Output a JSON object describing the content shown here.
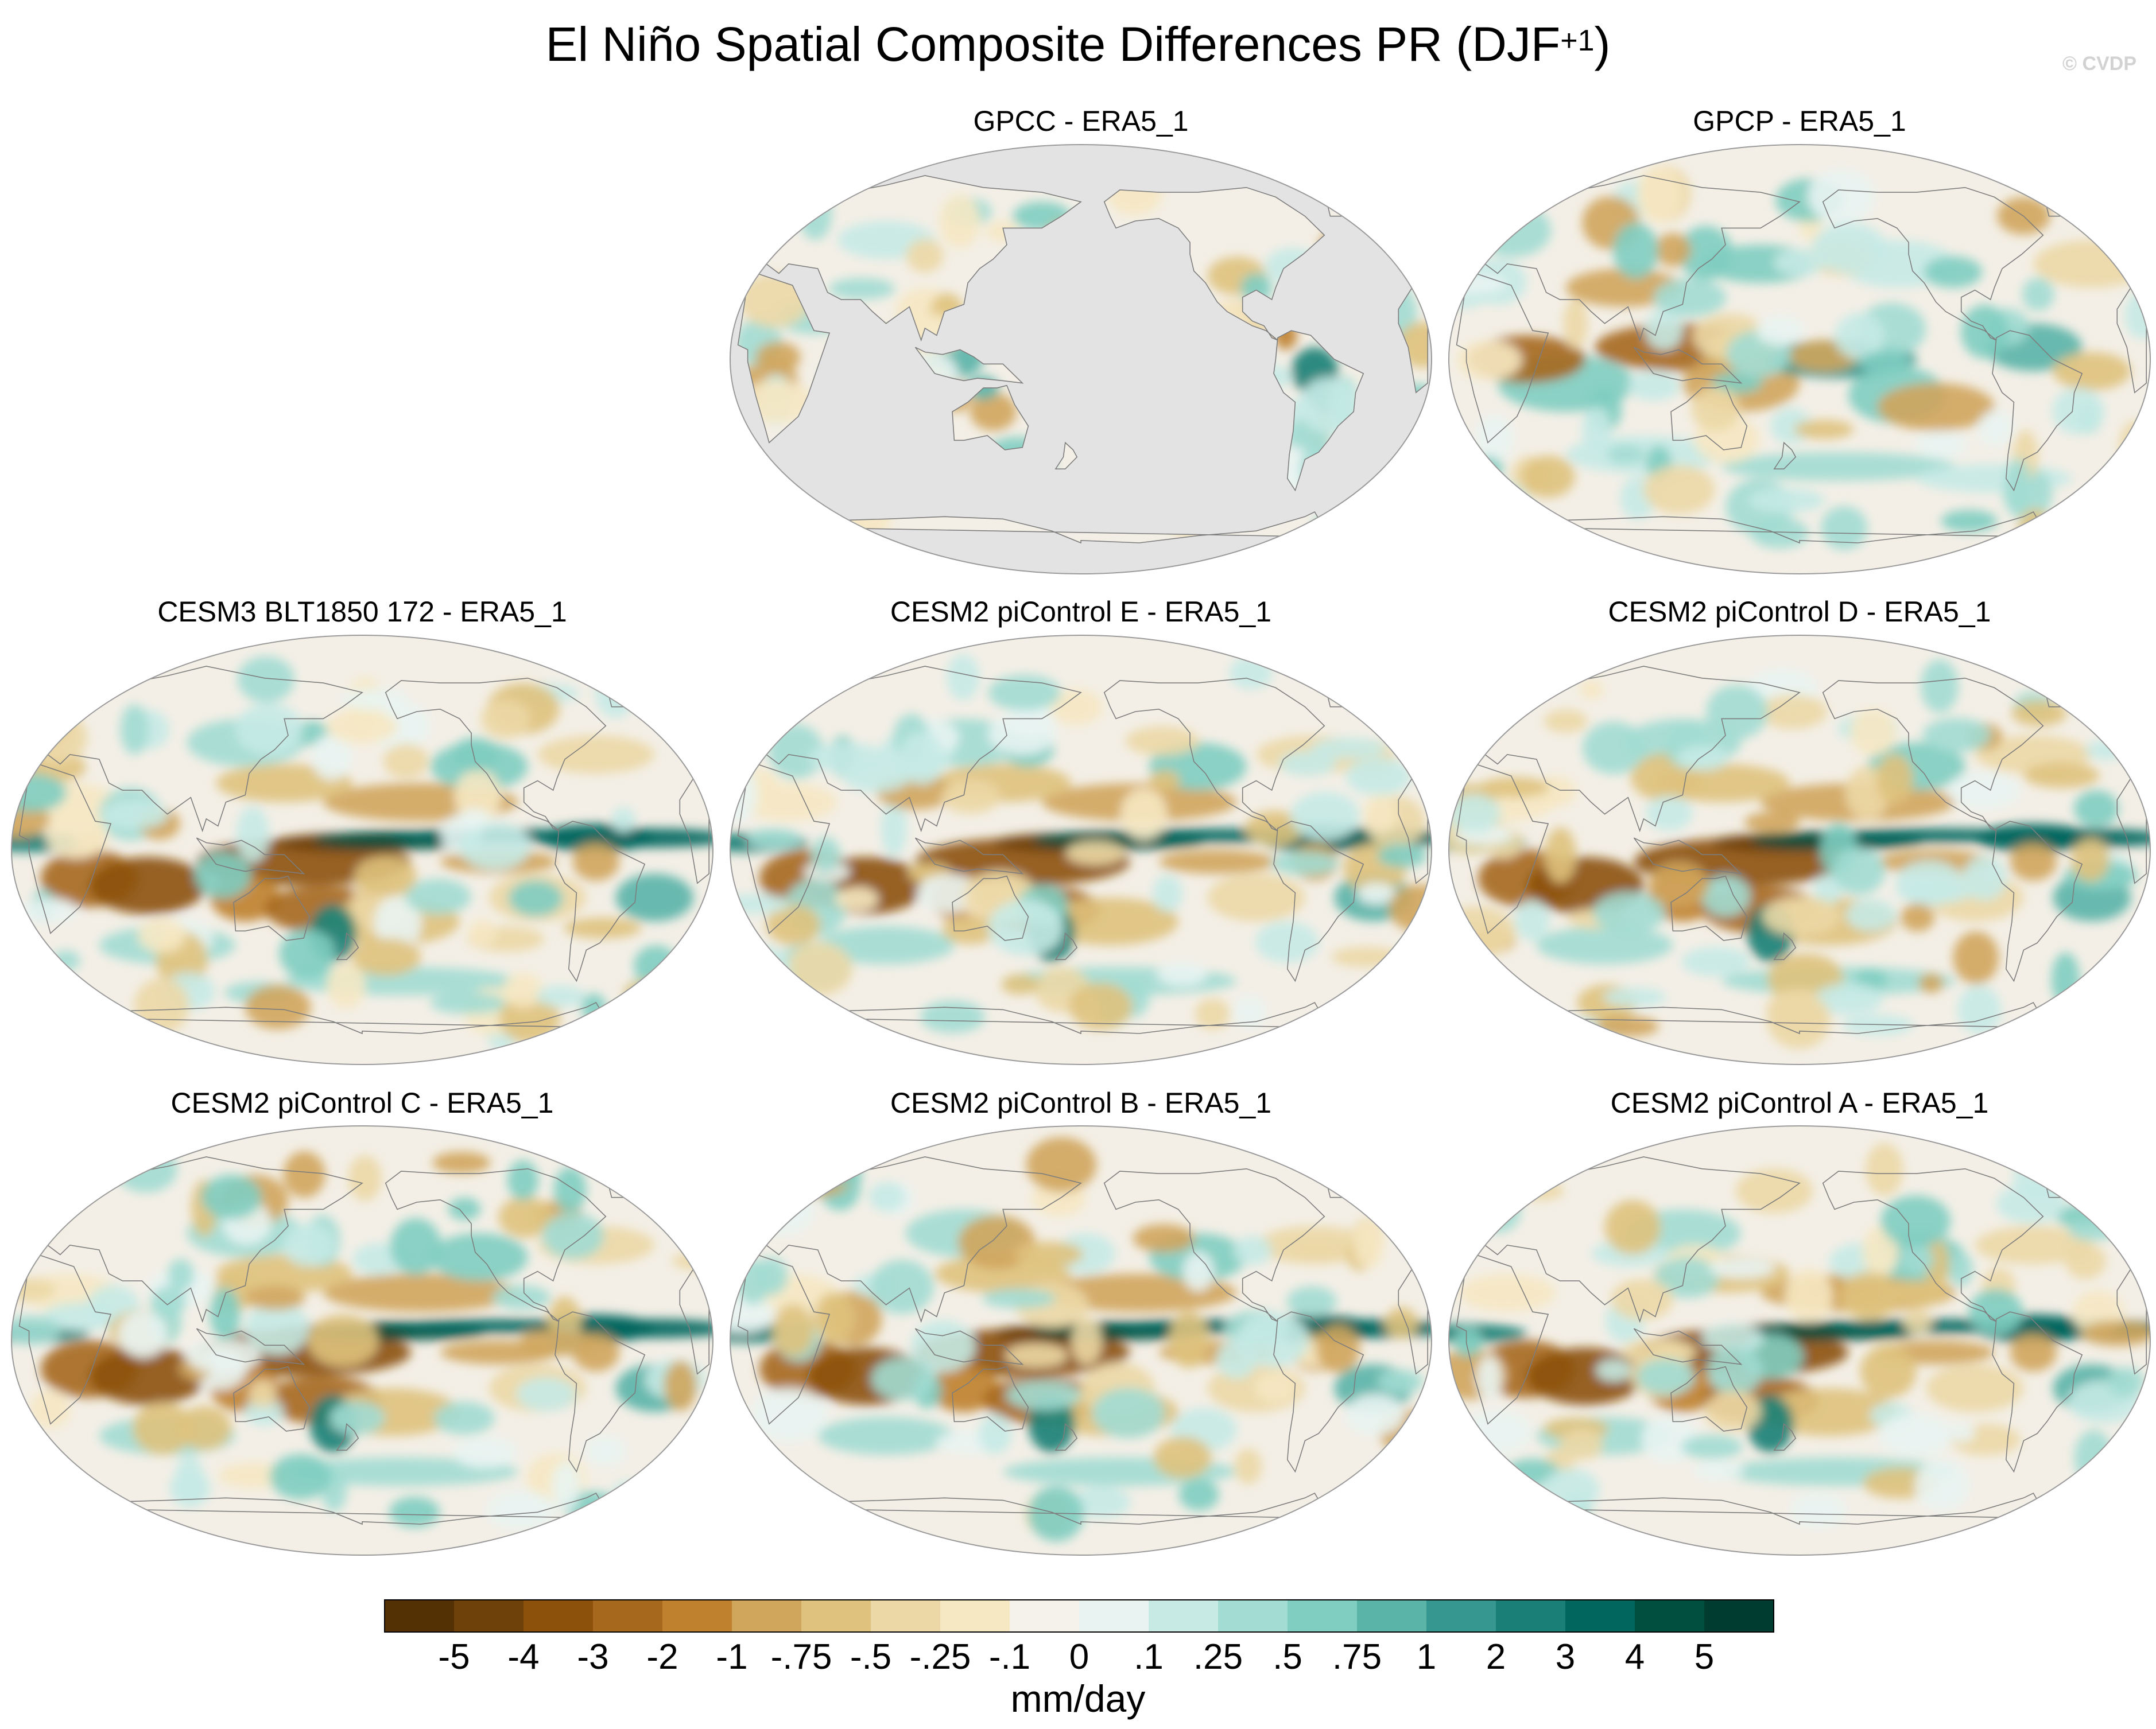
{
  "title": {
    "main": "El Niño Spatial Composite Differences PR (DJF",
    "sup": "+1",
    "close": ")"
  },
  "credit": "© CVDP",
  "chart_data": {
    "type": "heatmap",
    "projection": "Robinson (global map panels)",
    "units": "mm/day",
    "colorbar": {
      "labels": [
        "-5",
        "-4",
        "-3",
        "-2",
        "-1",
        "-.75",
        "-.5",
        "-.25",
        "-.1",
        "0",
        ".1",
        ".25",
        ".5",
        ".75",
        "1",
        "2",
        "3",
        "4",
        "5"
      ],
      "colors": [
        "#543005",
        "#6f410a",
        "#8c510a",
        "#a6681c",
        "#bf812d",
        "#d0a55c",
        "#dfc27d",
        "#ecd8a6",
        "#f6e8c3",
        "#f5f2eb",
        "#e9f4f2",
        "#c7eae5",
        "#a2dcd3",
        "#80cdc1",
        "#5ab4a8",
        "#35978f",
        "#1a7f76",
        "#01665e",
        "#01503f",
        "#003c30"
      ]
    },
    "panels": [
      {
        "name": "GPCC - ERA5_1",
        "row": 1,
        "col": 2,
        "coverage": "land only",
        "pattern": "gpcc"
      },
      {
        "name": "GPCP - ERA5_1",
        "row": 1,
        "col": 3,
        "coverage": "global",
        "pattern": "gpcp"
      },
      {
        "name": "CESM3 BLT1850 172 - ERA5_1",
        "row": 2,
        "col": 1,
        "coverage": "global",
        "pattern": "model"
      },
      {
        "name": "CESM2 piControl E - ERA5_1",
        "row": 2,
        "col": 2,
        "coverage": "global",
        "pattern": "model"
      },
      {
        "name": "CESM2 piControl D - ERA5_1",
        "row": 2,
        "col": 3,
        "coverage": "global",
        "pattern": "model"
      },
      {
        "name": "CESM2 piControl C - ERA5_1",
        "row": 3,
        "col": 1,
        "coverage": "global",
        "pattern": "model"
      },
      {
        "name": "CESM2 piControl B - ERA5_1",
        "row": 3,
        "col": 2,
        "coverage": "global",
        "pattern": "model"
      },
      {
        "name": "CESM2 piControl A - ERA5_1",
        "row": 3,
        "col": 3,
        "coverage": "global",
        "pattern": "model"
      }
    ]
  }
}
